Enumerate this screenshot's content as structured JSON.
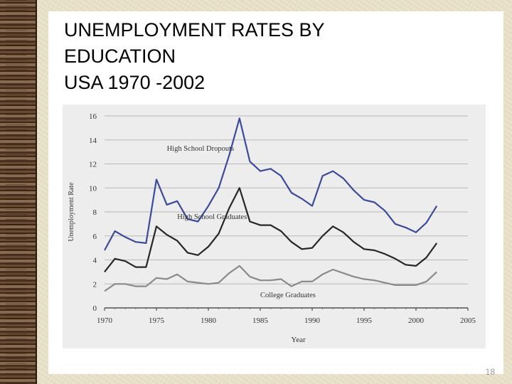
{
  "slide": {
    "title": "UNEMPLOYMENT RATES BY\nEDUCATION\nUSA 1970 -2002",
    "page_number": "18"
  },
  "colors": {
    "background": "#ebe4cc",
    "panel": "#ffffff",
    "chart_bg": "#ededed",
    "dropouts": "#3c4a9c",
    "graduates": "#262626",
    "college": "#8a8a8a"
  },
  "chart_data": {
    "type": "line",
    "title": "",
    "xlabel": "Year",
    "ylabel": "Unemployment Rate",
    "xlim": [
      1970,
      2005
    ],
    "ylim": [
      0,
      16
    ],
    "xticks": [
      1970,
      1975,
      1980,
      1985,
      1990,
      1995,
      2000,
      2005
    ],
    "yticks": [
      0,
      2,
      4,
      6,
      8,
      10,
      12,
      14,
      16
    ],
    "grid": true,
    "x": [
      1970,
      1971,
      1972,
      1973,
      1974,
      1975,
      1976,
      1977,
      1978,
      1979,
      1980,
      1981,
      1982,
      1983,
      1984,
      1985,
      1986,
      1987,
      1988,
      1989,
      1990,
      1991,
      1992,
      1993,
      1994,
      1995,
      1996,
      1997,
      1998,
      1999,
      2000,
      2001,
      2002
    ],
    "series": [
      {
        "name": "High School Dropouts",
        "color": "#3c4a9c",
        "values": [
          4.8,
          6.4,
          5.9,
          5.5,
          5.4,
          10.7,
          8.6,
          8.9,
          7.4,
          7.2,
          8.5,
          10.0,
          12.7,
          15.8,
          12.2,
          11.4,
          11.6,
          11.0,
          9.6,
          9.1,
          8.5,
          11.0,
          11.4,
          10.8,
          9.8,
          9.0,
          8.8,
          8.1,
          7.0,
          6.7,
          6.3,
          7.1,
          8.5
        ]
      },
      {
        "name": "High School Graduates",
        "color": "#262626",
        "values": [
          3.0,
          4.1,
          3.9,
          3.4,
          3.4,
          6.8,
          6.1,
          5.6,
          4.6,
          4.4,
          5.1,
          6.2,
          8.3,
          10.0,
          7.2,
          6.9,
          6.9,
          6.4,
          5.5,
          4.9,
          5.0,
          6.0,
          6.8,
          6.3,
          5.5,
          4.9,
          4.8,
          4.5,
          4.1,
          3.6,
          3.5,
          4.2,
          5.4
        ]
      },
      {
        "name": "College Graduates",
        "color": "#8a8a8a",
        "values": [
          1.4,
          2.0,
          2.0,
          1.8,
          1.8,
          2.5,
          2.4,
          2.8,
          2.2,
          2.1,
          2.0,
          2.1,
          2.9,
          3.5,
          2.6,
          2.3,
          2.3,
          2.4,
          1.8,
          2.2,
          2.2,
          2.8,
          3.2,
          2.9,
          2.6,
          2.4,
          2.3,
          2.1,
          1.9,
          1.9,
          1.9,
          2.2,
          3.0
        ]
      }
    ]
  }
}
